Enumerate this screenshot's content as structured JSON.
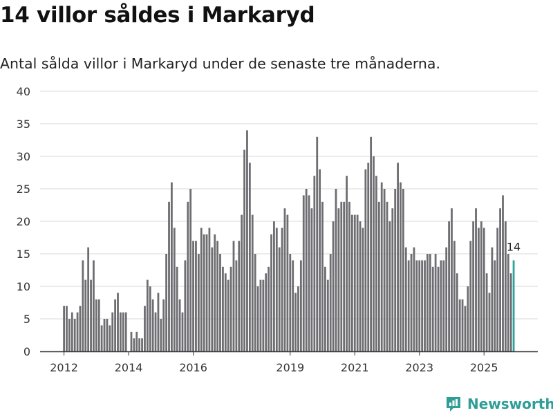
{
  "header": {
    "title": "14 villor såldes i Markaryd",
    "subtitle": "Antal sålda villor i Markaryd under de senaste tre månaderna."
  },
  "brand": {
    "name": "Newsworthy",
    "icon": "newsworthy-logo-icon",
    "color": "#2e9e96"
  },
  "colors": {
    "bar": "#6e6d72",
    "highlight": "#2ea399",
    "grid": "#d9d9d9",
    "axis": "#333333"
  },
  "chart_data": {
    "type": "bar",
    "title": "14 villor såldes i Markaryd",
    "xlabel": "",
    "ylabel": "",
    "ylim": [
      0,
      40
    ],
    "yticks": [
      0,
      5,
      10,
      15,
      20,
      25,
      30,
      35,
      40
    ],
    "x_start": "2012-01",
    "frequency": "monthly",
    "xtick_labels": [
      {
        "label": "2012",
        "index": 0
      },
      {
        "label": "2014",
        "index": 24
      },
      {
        "label": "2016",
        "index": 48
      },
      {
        "label": "2019",
        "index": 84
      },
      {
        "label": "2021",
        "index": 108
      },
      {
        "label": "2023",
        "index": 132
      },
      {
        "label": "2025",
        "index": 156
      }
    ],
    "values": [
      7,
      7,
      5,
      6,
      5,
      6,
      7,
      14,
      11,
      16,
      11,
      14,
      8,
      8,
      4,
      5,
      5,
      4,
      6,
      8,
      9,
      6,
      6,
      6,
      0,
      3,
      2,
      3,
      2,
      2,
      7,
      11,
      10,
      8,
      6,
      9,
      5,
      8,
      15,
      23,
      26,
      19,
      13,
      8,
      6,
      14,
      23,
      25,
      17,
      17,
      15,
      19,
      18,
      18,
      19,
      16,
      18,
      17,
      15,
      13,
      12,
      11,
      13,
      17,
      14,
      17,
      21,
      31,
      34,
      29,
      21,
      15,
      10,
      11,
      11,
      12,
      13,
      18,
      20,
      19,
      16,
      19,
      22,
      21,
      15,
      14,
      9,
      10,
      14,
      24,
      25,
      24,
      22,
      27,
      33,
      28,
      23,
      13,
      11,
      15,
      20,
      25,
      22,
      23,
      23,
      27,
      23,
      21,
      21,
      21,
      20,
      19,
      28,
      29,
      33,
      30,
      27,
      23,
      26,
      25,
      23,
      20,
      22,
      25,
      29,
      26,
      25,
      16,
      14,
      15,
      16,
      14,
      14,
      14,
      14,
      15,
      15,
      13,
      15,
      13,
      14,
      14,
      16,
      20,
      22,
      17,
      12,
      8,
      8,
      7,
      10,
      17,
      20,
      22,
      19,
      20,
      19,
      12,
      9,
      16,
      14,
      19,
      22,
      24,
      20,
      15,
      12,
      14
    ],
    "highlight_index": 167,
    "annotation": {
      "label": "14",
      "index": 167
    }
  }
}
